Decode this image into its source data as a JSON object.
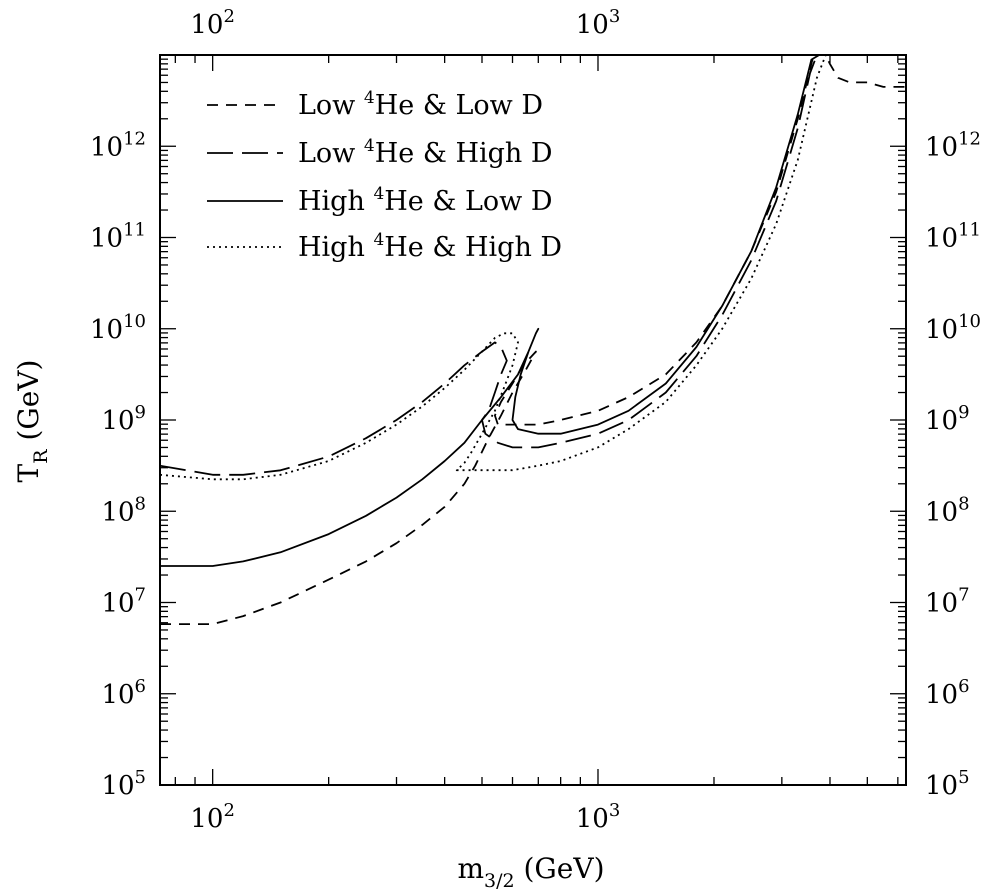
{
  "chart_data": {
    "type": "line",
    "xscale": "log",
    "yscale": "log",
    "xlim": [
      73,
      6300
    ],
    "ylim": [
      100000,
      10000000000000
    ],
    "xticks": [
      {
        "value": 100,
        "base": "10",
        "exp": "2"
      },
      {
        "value": 1000,
        "base": "10",
        "exp": "3"
      }
    ],
    "yticks": [
      {
        "value": 100000,
        "base": "10",
        "exp": "5"
      },
      {
        "value": 1000000,
        "base": "10",
        "exp": "6"
      },
      {
        "value": 10000000,
        "base": "10",
        "exp": "7"
      },
      {
        "value": 100000000,
        "base": "10",
        "exp": "8"
      },
      {
        "value": 1000000000,
        "base": "10",
        "exp": "9"
      },
      {
        "value": 10000000000,
        "base": "10",
        "exp": "10"
      },
      {
        "value": 100000000000,
        "base": "10",
        "exp": "11"
      },
      {
        "value": 1000000000000,
        "base": "10",
        "exp": "12"
      }
    ],
    "xlabel": {
      "main": "m",
      "sub": "3/2",
      "unit": " (GeV)"
    },
    "ylabel": {
      "main": "T",
      "sub": "R",
      "unit": " (GeV)"
    },
    "legend_position": "top-left",
    "series": [
      {
        "name": "Low ⁴He & Low D",
        "label_parts": [
          "Low ",
          "4",
          "He & Low D"
        ],
        "dash": "short-dash",
        "x": [
          73,
          100,
          120,
          150,
          200,
          250,
          300,
          350,
          400,
          450,
          480,
          520,
          560,
          600,
          650,
          690,
          690,
          640,
          600,
          560,
          540,
          550,
          600,
          700,
          800,
          1000,
          1200,
          1500,
          1800,
          2100,
          2500,
          2900,
          3300,
          3600,
          3800,
          3850,
          3900,
          4000,
          4200,
          4500,
          5000,
          5500,
          6300
        ],
        "y": [
          5800000,
          5800000,
          7100000,
          10000000,
          17800000,
          28200000,
          44700000,
          70800000,
          112000000,
          200000000,
          316000000,
          631000000,
          1120000000,
          2000000000,
          3550000000,
          5620000000,
          5620000000,
          3980000000,
          2510000000,
          1580000000,
          1120000000,
          891000000,
          891000000,
          891000000,
          1000000000,
          1260000000,
          1780000000,
          3160000000,
          7080000000,
          17800000000,
          70800000000,
          316000000000,
          2000000000000,
          8900000000000,
          25100000000000,
          40000000000000,
          10000000000000,
          7940000000000,
          5620000000000,
          5010000000000,
          5010000000000,
          4470000000000,
          4470000000000
        ]
      },
      {
        "name": "Low ⁴He & High D",
        "label_parts": [
          "Low ",
          "4",
          "He & High D"
        ],
        "dash": "long-dash",
        "x": [
          73,
          100,
          120,
          150,
          200,
          250,
          300,
          350,
          400,
          450,
          500,
          540,
          560,
          580,
          560,
          540,
          520,
          500,
          510,
          550,
          600,
          700,
          800,
          1000,
          1200,
          1500,
          1800,
          2100,
          2500,
          2900,
          3300,
          3550,
          3700
        ],
        "y": [
          316000000,
          251000000,
          251000000,
          281000000,
          398000000,
          631000000,
          1000000000,
          1580000000,
          2510000000,
          3980000000,
          5620000000,
          7080000000,
          6310000000,
          4470000000,
          3160000000,
          2000000000,
          1260000000,
          1000000000,
          708000000,
          562000000,
          501000000,
          501000000,
          562000000,
          708000000,
          1000000000,
          2000000000,
          5010000000,
          14100000000,
          56200000000,
          251000000000,
          1580000000000,
          6310000000000,
          10000000000000
        ]
      },
      {
        "name": "High ⁴He & Low D",
        "label_parts": [
          "High ",
          "4",
          "He & Low D"
        ],
        "dash": "solid",
        "x": [
          73,
          100,
          120,
          150,
          200,
          250,
          300,
          350,
          400,
          450,
          500,
          560,
          620,
          660,
          690,
          700,
          690,
          660,
          630,
          610,
          600,
          620,
          700,
          800,
          1000,
          1200,
          1500,
          1800,
          2100,
          2500,
          2900,
          3300,
          3580,
          3750
        ],
        "y": [
          25100000,
          25100000,
          28200000,
          35500000,
          56200000,
          89100000,
          141000000,
          224000000,
          355000000,
          562000000,
          1000000000,
          1780000000,
          3160000000,
          5620000000,
          8910000000,
          10000000000,
          8910000000,
          5620000000,
          3160000000,
          1780000000,
          1000000000,
          794000000,
          708000000,
          708000000,
          891000000,
          1260000000,
          2510000000,
          6310000000,
          17800000000,
          70800000000,
          355000000000,
          2240000000000,
          8910000000000,
          10000000000000
        ]
      },
      {
        "name": "High ⁴He & High D",
        "label_parts": [
          "High ",
          "4",
          "He & High D"
        ],
        "dash": "dotted",
        "x": [
          73,
          100,
          120,
          150,
          200,
          250,
          300,
          350,
          400,
          450,
          500,
          540,
          570,
          600,
          620,
          600,
          570,
          540,
          500,
          470,
          450,
          430,
          450,
          500,
          600,
          700,
          800,
          1000,
          1200,
          1500,
          1800,
          2100,
          2500,
          2900,
          3300,
          3700,
          3900
        ],
        "y": [
          251000000,
          224000000,
          224000000,
          251000000,
          355000000,
          562000000,
          891000000,
          1410000000,
          2240000000,
          3550000000,
          5620000000,
          7940000000,
          8910000000,
          8910000000,
          7080000000,
          3980000000,
          2240000000,
          1260000000,
          708000000,
          447000000,
          339000000,
          282000000,
          282000000,
          282000000,
          282000000,
          316000000,
          355000000,
          501000000,
          794000000,
          1580000000,
          3980000000,
          10000000000,
          35500000000,
          141000000000,
          708000000000,
          5620000000000,
          10000000000000
        ]
      }
    ]
  }
}
